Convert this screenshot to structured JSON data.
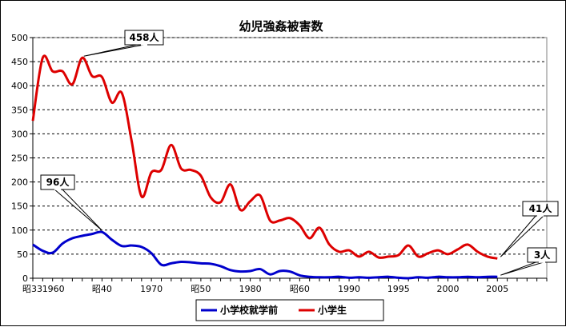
{
  "chart_data": {
    "type": "line",
    "title": "幼児強姦被害数",
    "xlabel": "",
    "ylabel": "",
    "ylim": [
      0,
      500
    ],
    "yticks": [
      0,
      50,
      100,
      150,
      200,
      250,
      300,
      350,
      400,
      450,
      500
    ],
    "xlim": [
      1958,
      2010
    ],
    "xticks": [
      {
        "x": 1958,
        "label": "昭33"
      },
      {
        "x": 1960,
        "label": "1960"
      },
      {
        "x": 1965,
        "label": "昭40"
      },
      {
        "x": 1970,
        "label": "1970"
      },
      {
        "x": 1975,
        "label": "昭50"
      },
      {
        "x": 1980,
        "label": "1980"
      },
      {
        "x": 1985,
        "label": "昭60"
      },
      {
        "x": 1990,
        "label": "1990"
      },
      {
        "x": 1995,
        "label": "1995"
      },
      {
        "x": 2000,
        "label": "2000"
      },
      {
        "x": 2005,
        "label": "2005"
      }
    ],
    "grid": {
      "y_major": true,
      "x_major": false
    },
    "legend_position": "bottom",
    "series": [
      {
        "name": "小学校就学前",
        "color": "#0000cc",
        "x": [
          1958,
          1959,
          1960,
          1961,
          1962,
          1963,
          1964,
          1965,
          1966,
          1967,
          1968,
          1969,
          1970,
          1971,
          1972,
          1973,
          1974,
          1975,
          1976,
          1977,
          1978,
          1979,
          1980,
          1981,
          1982,
          1983,
          1984,
          1985,
          1986,
          1987,
          1988,
          1989,
          1990,
          1991,
          1992,
          1993,
          1994,
          1995,
          1996,
          1997,
          1998,
          1999,
          2000,
          2001,
          2002,
          2003,
          2004,
          2005
        ],
        "values": [
          70,
          57,
          53,
          72,
          83,
          88,
          92,
          96,
          80,
          67,
          68,
          65,
          52,
          28,
          31,
          34,
          33,
          31,
          30,
          25,
          17,
          14,
          15,
          19,
          8,
          15,
          14,
          6,
          3,
          2,
          2,
          3,
          1,
          2,
          1,
          2,
          3,
          1,
          0,
          2,
          1,
          3,
          2,
          2,
          3,
          2,
          3,
          3
        ]
      },
      {
        "name": "小学生",
        "color": "#dd0000",
        "x": [
          1958,
          1959,
          1960,
          1961,
          1962,
          1963,
          1964,
          1965,
          1966,
          1967,
          1968,
          1969,
          1970,
          1971,
          1972,
          1973,
          1974,
          1975,
          1976,
          1977,
          1978,
          1979,
          1980,
          1981,
          1982,
          1983,
          1984,
          1985,
          1986,
          1987,
          1988,
          1989,
          1990,
          1991,
          1992,
          1993,
          1994,
          1995,
          1996,
          1997,
          1998,
          1999,
          2000,
          2001,
          2002,
          2003,
          2004,
          2005
        ],
        "values": [
          327,
          458,
          430,
          430,
          403,
          458,
          420,
          418,
          365,
          385,
          285,
          170,
          220,
          225,
          277,
          228,
          225,
          213,
          168,
          158,
          195,
          142,
          160,
          172,
          120,
          120,
          125,
          110,
          83,
          105,
          70,
          55,
          58,
          45,
          55,
          43,
          45,
          48,
          68,
          45,
          52,
          58,
          50,
          60,
          70,
          55,
          45,
          41
        ]
      }
    ],
    "annotations": [
      {
        "text": "458人",
        "x": 1963,
        "y": 458,
        "series": 1
      },
      {
        "text": "96人",
        "x": 1965,
        "y": 96,
        "series": 0
      },
      {
        "text": "41人",
        "x": 2005,
        "y": 41,
        "series": 1
      },
      {
        "text": "3人",
        "x": 2005,
        "y": 3,
        "series": 0
      }
    ]
  }
}
